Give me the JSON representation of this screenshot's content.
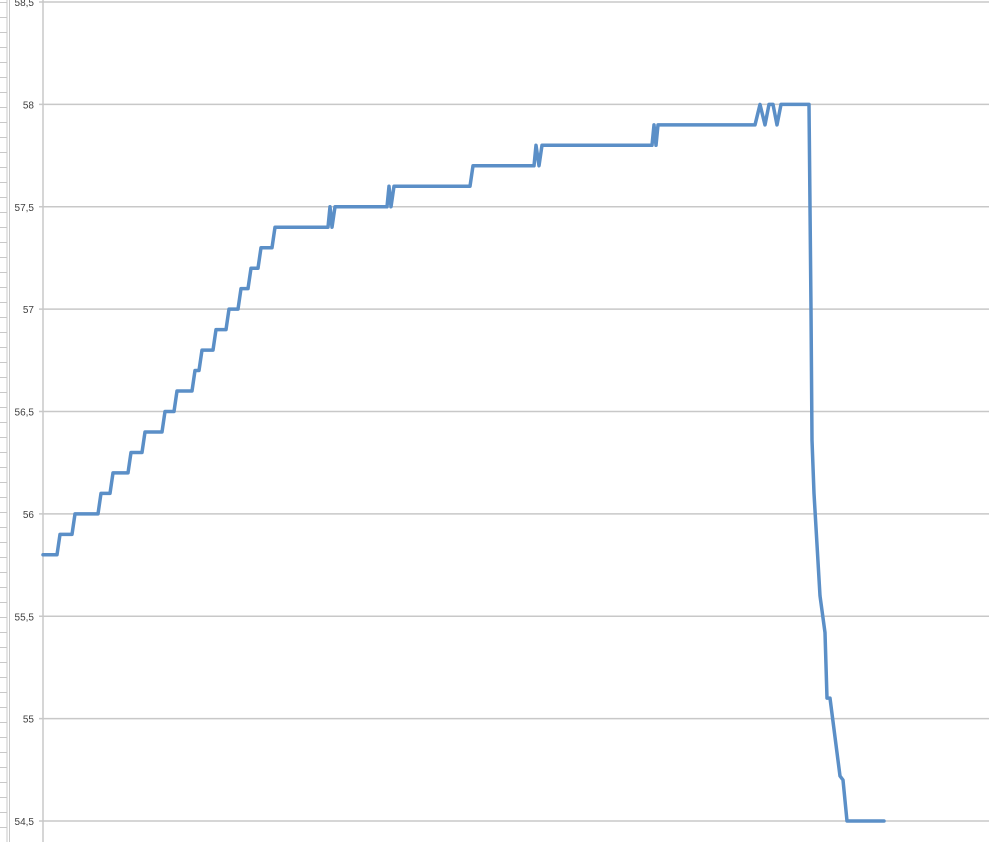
{
  "chart_data": {
    "type": "line",
    "title": "",
    "xlabel": "",
    "ylabel": "",
    "ylim": [
      54.5,
      58.5
    ],
    "y_ticks": [
      "54,5",
      "55",
      "55,5",
      "56",
      "56,5",
      "57",
      "57,5",
      "58",
      "58,5"
    ],
    "y_tick_values": [
      54.5,
      55,
      55.5,
      56,
      56.5,
      57,
      57.5,
      58,
      58.5
    ],
    "x_tick_labels_shown": false,
    "xlim": [
      0,
      946
    ],
    "grid": {
      "horizontal": true,
      "vertical": false
    },
    "legend": "none",
    "line_color": "#5B8FC7",
    "grid_color": "#C8C8C8",
    "series": [
      {
        "points": [
          [
            0,
            55.8
          ],
          [
            14,
            55.8
          ],
          [
            17,
            55.9
          ],
          [
            29,
            55.9
          ],
          [
            32,
            56.0
          ],
          [
            55,
            56.0
          ],
          [
            58,
            56.1
          ],
          [
            67,
            56.1
          ],
          [
            70,
            56.2
          ],
          [
            85,
            56.2
          ],
          [
            88,
            56.3
          ],
          [
            99,
            56.3
          ],
          [
            102,
            56.4
          ],
          [
            119,
            56.4
          ],
          [
            122,
            56.5
          ],
          [
            131,
            56.5
          ],
          [
            134,
            56.6
          ],
          [
            149,
            56.6
          ],
          [
            152,
            56.7
          ],
          [
            156,
            56.7
          ],
          [
            159,
            56.8
          ],
          [
            170,
            56.8
          ],
          [
            173,
            56.9
          ],
          [
            183,
            56.9
          ],
          [
            186,
            57.0
          ],
          [
            195,
            57.0
          ],
          [
            198,
            57.1
          ],
          [
            205,
            57.1
          ],
          [
            208,
            57.2
          ],
          [
            215,
            57.2
          ],
          [
            218,
            57.3
          ],
          [
            229,
            57.3
          ],
          [
            232,
            57.4
          ],
          [
            285,
            57.4
          ],
          [
            287,
            57.5
          ],
          [
            289,
            57.4
          ],
          [
            292,
            57.5
          ],
          [
            344,
            57.5
          ],
          [
            346,
            57.6
          ],
          [
            348,
            57.5
          ],
          [
            351,
            57.6
          ],
          [
            427,
            57.6
          ],
          [
            430,
            57.7
          ],
          [
            491,
            57.7
          ],
          [
            493,
            57.8
          ],
          [
            496,
            57.7
          ],
          [
            499,
            57.8
          ],
          [
            609,
            57.8
          ],
          [
            611,
            57.9
          ],
          [
            613,
            57.8
          ],
          [
            615,
            57.9
          ],
          [
            712,
            57.9
          ],
          [
            717,
            58.0
          ],
          [
            722,
            57.9
          ],
          [
            726,
            58.0
          ],
          [
            730,
            58.0
          ],
          [
            734,
            57.9
          ],
          [
            738,
            58.0
          ],
          [
            766,
            58.0
          ],
          [
            768,
            57.0
          ],
          [
            769,
            56.36
          ],
          [
            771,
            56.1
          ],
          [
            777,
            55.6
          ],
          [
            782,
            55.42
          ],
          [
            784,
            55.1
          ],
          [
            787,
            55.1
          ],
          [
            797,
            54.72
          ],
          [
            800,
            54.7
          ],
          [
            804,
            54.5
          ],
          [
            841,
            54.5
          ]
        ]
      }
    ]
  }
}
